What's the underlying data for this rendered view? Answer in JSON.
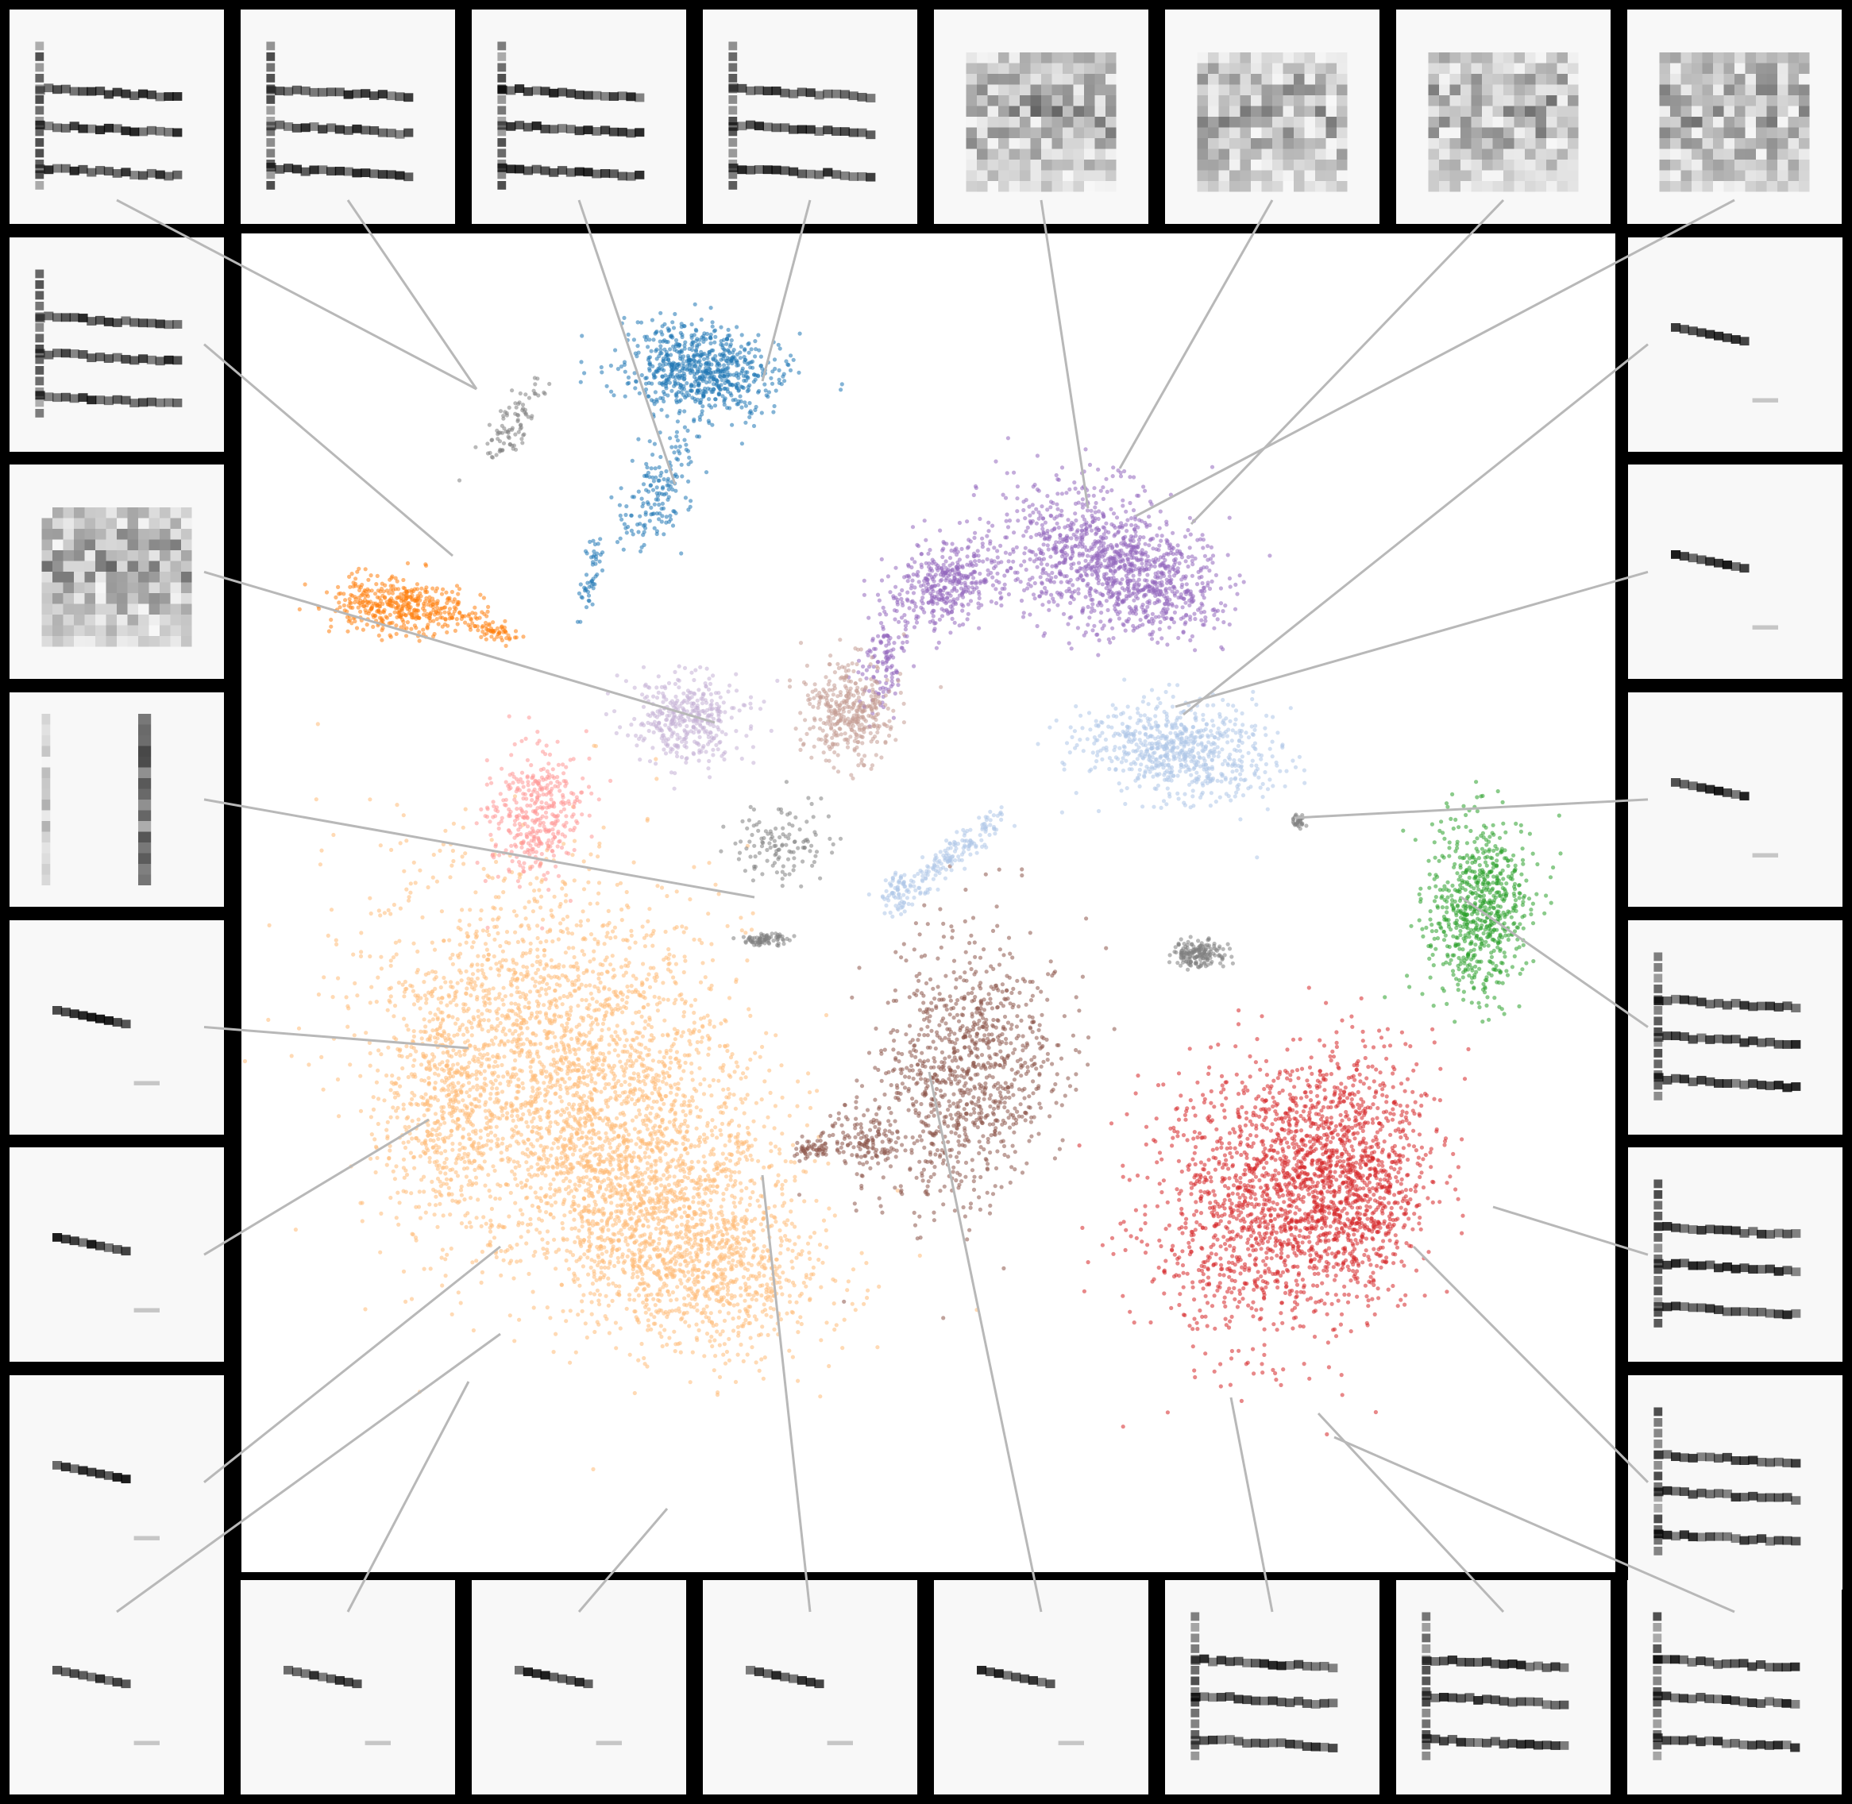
{
  "figure": {
    "description_free": true,
    "background_color": "#ffffff",
    "border_color": "#000000",
    "connector_color": "#b8b8b8"
  },
  "clusters": [
    {
      "name": "blue-cluster",
      "color": "#1f77b4"
    },
    {
      "name": "orange-cluster",
      "color": "#ff7f0e"
    },
    {
      "name": "purple-cluster",
      "color": "#9467bd"
    },
    {
      "name": "lavender-cluster",
      "color": "#c5b0d5"
    },
    {
      "name": "tan-cluster",
      "color": "#c49c94"
    },
    {
      "name": "light-blue-cluster",
      "color": "#aec7e8"
    },
    {
      "name": "pink-cluster",
      "color": "#ff9896"
    },
    {
      "name": "green-cluster",
      "color": "#2ca02c"
    },
    {
      "name": "peach-cluster",
      "color": "#ffbb78"
    },
    {
      "name": "brown-cluster",
      "color": "#8c564b"
    },
    {
      "name": "red-cluster",
      "color": "#d62728"
    },
    {
      "name": "gray-points",
      "color": "#7f7f7f"
    }
  ],
  "spectrogram_tiles": [
    {
      "name": "tile-top-1",
      "style": "harmonic"
    },
    {
      "name": "tile-top-2",
      "style": "harmonic"
    },
    {
      "name": "tile-top-3",
      "style": "harmonic"
    },
    {
      "name": "tile-top-4",
      "style": "harmonic"
    },
    {
      "name": "tile-top-5",
      "style": "noisy"
    },
    {
      "name": "tile-top-6",
      "style": "noisy"
    },
    {
      "name": "tile-top-7",
      "style": "noisy"
    },
    {
      "name": "tile-top-8",
      "style": "noisy"
    },
    {
      "name": "tile-left-1",
      "style": "harmonic"
    },
    {
      "name": "tile-left-2",
      "style": "noisy"
    },
    {
      "name": "tile-left-3",
      "style": "vertical"
    },
    {
      "name": "tile-left-4",
      "style": "short"
    },
    {
      "name": "tile-left-5",
      "style": "short"
    },
    {
      "name": "tile-left-6",
      "style": "short"
    },
    {
      "name": "tile-right-1",
      "style": "short"
    },
    {
      "name": "tile-right-2",
      "style": "short"
    },
    {
      "name": "tile-right-3",
      "style": "short"
    },
    {
      "name": "tile-right-4",
      "style": "harmonic"
    },
    {
      "name": "tile-right-5",
      "style": "harmonic"
    },
    {
      "name": "tile-right-6",
      "style": "harmonic"
    },
    {
      "name": "tile-bottom-1",
      "style": "short"
    },
    {
      "name": "tile-bottom-2",
      "style": "short"
    },
    {
      "name": "tile-bottom-3",
      "style": "short"
    },
    {
      "name": "tile-bottom-4",
      "style": "short"
    },
    {
      "name": "tile-bottom-5",
      "style": "short"
    },
    {
      "name": "tile-bottom-6",
      "style": "harmonic"
    },
    {
      "name": "tile-bottom-7",
      "style": "harmonic"
    },
    {
      "name": "tile-bottom-8",
      "style": "harmonic"
    }
  ]
}
